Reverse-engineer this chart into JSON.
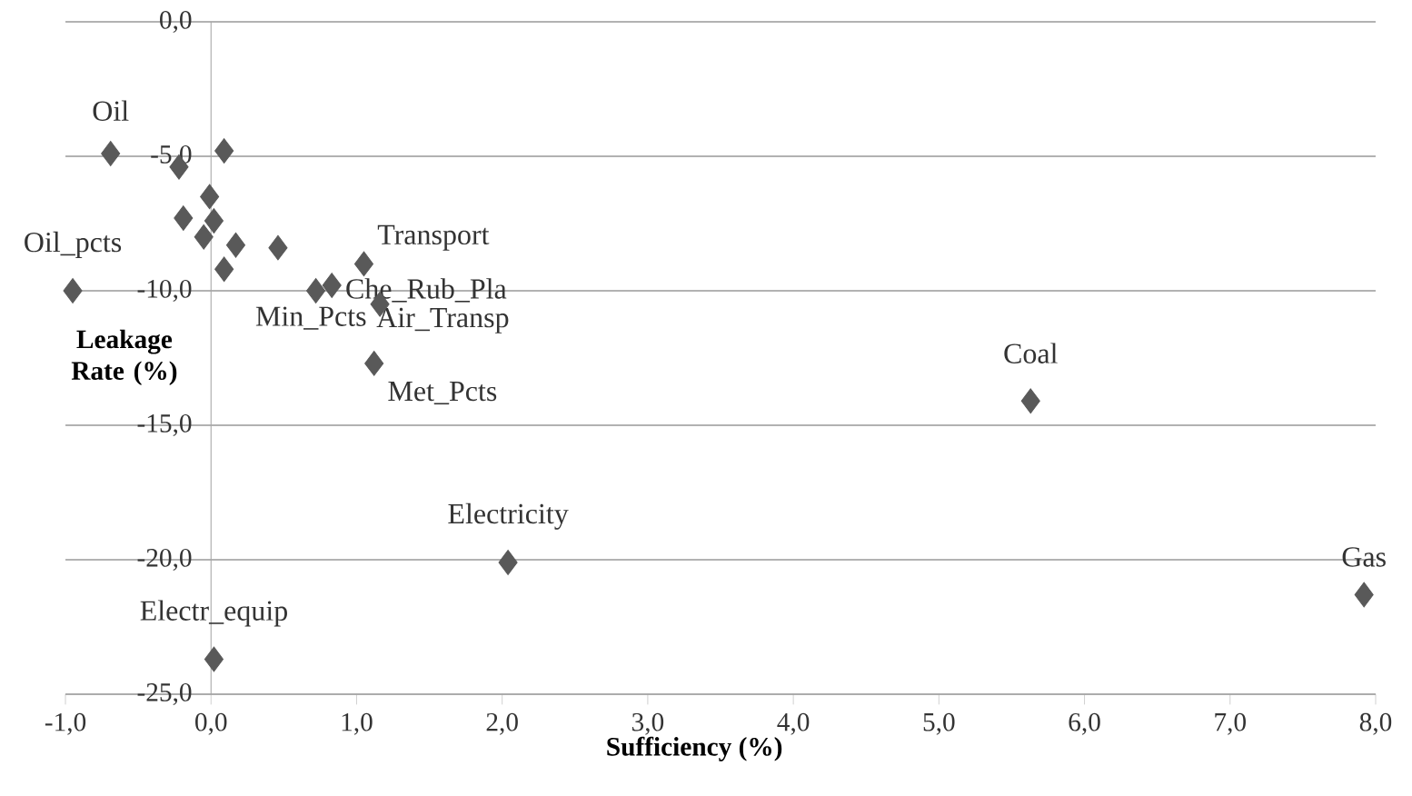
{
  "chart_data": {
    "type": "scatter",
    "xlabel": "Sufficiency (%)",
    "ylabel": "Leakage Rate (%)",
    "x": [
      -0.69,
      0.09,
      -0.22,
      -0.01,
      -0.19,
      0.02,
      -0.05,
      0.17,
      0.46,
      0.09,
      1.05,
      0.72,
      0.83,
      1.16,
      1.12,
      -0.95,
      5.63,
      2.04,
      7.92,
      0.02
    ],
    "values": [
      -4.9,
      -4.8,
      -5.4,
      -6.5,
      -7.3,
      -7.4,
      -8.0,
      -8.3,
      -8.4,
      -9.2,
      -9.0,
      -10.0,
      -9.8,
      -10.5,
      -12.7,
      -10.0,
      -14.1,
      -20.1,
      -21.3,
      -23.7
    ],
    "color": "#595959",
    "marker": "diamond",
    "grid": "y",
    "xlim": [
      -1,
      8
    ],
    "ylim": [
      -25,
      0
    ],
    "xticks": [
      {
        "value": -1,
        "label": "-1,0"
      },
      {
        "value": 0,
        "label": "0,0"
      },
      {
        "value": 1,
        "label": "1,0"
      },
      {
        "value": 2,
        "label": "2,0"
      },
      {
        "value": 3,
        "label": "3,0"
      },
      {
        "value": 4,
        "label": "4,0"
      },
      {
        "value": 5,
        "label": "5,0"
      },
      {
        "value": 6,
        "label": "6,0"
      },
      {
        "value": 7,
        "label": "7,0"
      },
      {
        "value": 8,
        "label": "8,0"
      }
    ],
    "yticks": [
      {
        "value": 0,
        "label": "0,0"
      },
      {
        "value": -5,
        "label": "-5,0"
      },
      {
        "value": -10,
        "label": "-10,0"
      },
      {
        "value": -15,
        "label": "-15,0"
      },
      {
        "value": -20,
        "label": "-20,0"
      },
      {
        "value": -25,
        "label": "-25,0"
      }
    ],
    "annotations": [
      {
        "text": "Oil",
        "x": -0.69,
        "y": -4.9
      },
      {
        "text": "Oil_pcts",
        "x": -0.95,
        "y": -10.0
      },
      {
        "text": "Transport",
        "x": 1.05,
        "y": -9.0
      },
      {
        "text": "Che_Rub_Pla",
        "x": 0.83,
        "y": -9.8
      },
      {
        "text": "Min_Pcts",
        "x": 0.72,
        "y": -10.0
      },
      {
        "text": "Air_Transp",
        "x": 1.16,
        "y": -10.5
      },
      {
        "text": "Met_Pcts",
        "x": 1.12,
        "y": -12.7
      },
      {
        "text": "Coal",
        "x": 5.63,
        "y": -14.1
      },
      {
        "text": "Electricity",
        "x": 2.04,
        "y": -20.1
      },
      {
        "text": "Gas",
        "x": 7.92,
        "y": -21.3
      },
      {
        "text": "Electr_equip",
        "x": 0.02,
        "y": -23.7
      }
    ]
  }
}
